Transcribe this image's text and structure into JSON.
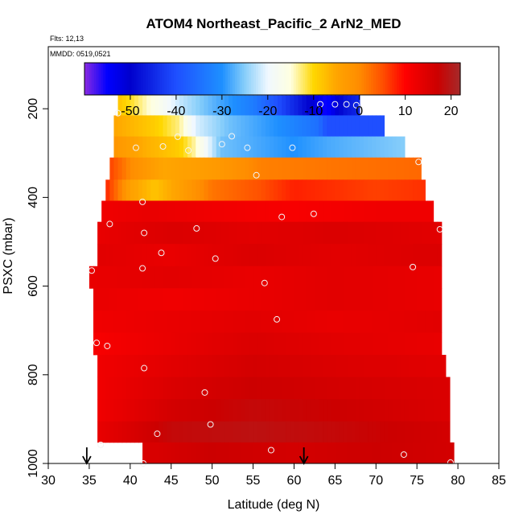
{
  "chart_data": {
    "type": "heatmap",
    "title": "ATOM4 Northeast_Pacific_2 ArN2_MED",
    "flights_text": "Flts: 12,13",
    "date_text": "MMDD: 0519,0521",
    "xlabel": "Latitude (deg N)",
    "ylabel": "PSXC (mbar)",
    "xlim": [
      30,
      85
    ],
    "ylim": [
      1000,
      60
    ],
    "y_reversed": true,
    "x_ticks": [
      "30",
      "35",
      "40",
      "45",
      "50",
      "55",
      "60",
      "65",
      "70",
      "75",
      "80",
      "85"
    ],
    "y_ticks": [
      "200",
      "400",
      "600",
      "800",
      "1000"
    ],
    "colorbar": {
      "range": [
        -60,
        22
      ],
      "ticks": [
        "-50",
        "-40",
        "-30",
        "-20",
        "-10",
        "0",
        "10",
        "20"
      ],
      "stops": [
        {
          "v": -60,
          "c": "#8a2be2"
        },
        {
          "v": -55,
          "c": "#0000ff"
        },
        {
          "v": -50,
          "c": "#0000cd"
        },
        {
          "v": -40,
          "c": "#1f4fff"
        },
        {
          "v": -30,
          "c": "#1e90ff"
        },
        {
          "v": -25,
          "c": "#87cefa"
        },
        {
          "v": -20,
          "c": "#f0f8ff"
        },
        {
          "v": -15,
          "c": "#ffffe0"
        },
        {
          "v": -10,
          "c": "#ffd700"
        },
        {
          "v": -5,
          "c": "#ffa500"
        },
        {
          "v": 0,
          "c": "#ff8c00"
        },
        {
          "v": 5,
          "c": "#ff5000"
        },
        {
          "v": 10,
          "c": "#ff0000"
        },
        {
          "v": 17,
          "c": "#cc0000"
        },
        {
          "v": 22,
          "c": "#a52a2a"
        }
      ]
    },
    "profiles": [
      {
        "p": 190,
        "lat_start": 38.5,
        "lat_end": 68,
        "values": [
          {
            "lat": 38.5,
            "v": -8
          },
          {
            "lat": 43,
            "v": -16
          },
          {
            "lat": 46,
            "v": -22
          },
          {
            "lat": 50,
            "v": -27
          },
          {
            "lat": 55,
            "v": -33
          },
          {
            "lat": 58,
            "v": -40
          },
          {
            "lat": 62,
            "v": -50
          },
          {
            "lat": 64,
            "v": -56
          },
          {
            "lat": 66,
            "v": -48
          },
          {
            "lat": 68,
            "v": -45
          }
        ]
      },
      {
        "p": 240,
        "lat_start": 38,
        "lat_end": 71,
        "values": [
          {
            "lat": 38,
            "v": -5
          },
          {
            "lat": 43,
            "v": -9
          },
          {
            "lat": 46,
            "v": -13
          },
          {
            "lat": 48,
            "v": -21
          },
          {
            "lat": 52,
            "v": -26
          },
          {
            "lat": 58,
            "v": -30
          },
          {
            "lat": 63,
            "v": -35
          },
          {
            "lat": 64,
            "v": -40
          },
          {
            "lat": 71,
            "v": -40
          }
        ]
      },
      {
        "p": 285,
        "lat_start": 38,
        "lat_end": 73.5,
        "values": [
          {
            "lat": 38,
            "v": -2
          },
          {
            "lat": 42,
            "v": -6
          },
          {
            "lat": 46,
            "v": -9
          },
          {
            "lat": 48,
            "v": -14
          },
          {
            "lat": 51,
            "v": -26
          },
          {
            "lat": 60,
            "v": -30
          },
          {
            "lat": 64,
            "v": -28
          },
          {
            "lat": 73.5,
            "v": -25
          }
        ]
      },
      {
        "p": 335,
        "lat_start": 37.5,
        "lat_end": 75.5,
        "values": [
          {
            "lat": 37.5,
            "v": 6
          },
          {
            "lat": 40,
            "v": 0
          },
          {
            "lat": 44,
            "v": -5
          },
          {
            "lat": 50,
            "v": -3
          },
          {
            "lat": 56,
            "v": 1
          },
          {
            "lat": 65,
            "v": 2
          },
          {
            "lat": 75.5,
            "v": 3
          }
        ]
      },
      {
        "p": 385,
        "lat_start": 37,
        "lat_end": 76,
        "values": [
          {
            "lat": 37,
            "v": 8
          },
          {
            "lat": 40,
            "v": -4
          },
          {
            "lat": 43,
            "v": -8
          },
          {
            "lat": 46,
            "v": -4
          },
          {
            "lat": 50,
            "v": 2
          },
          {
            "lat": 56,
            "v": 5
          },
          {
            "lat": 60,
            "v": 8
          },
          {
            "lat": 70,
            "v": 6
          },
          {
            "lat": 76,
            "v": 7
          }
        ]
      },
      {
        "p": 430,
        "lat_start": 36.5,
        "lat_end": 77,
        "values": [
          {
            "lat": 36.5,
            "v": 12
          },
          {
            "lat": 42,
            "v": 13
          },
          {
            "lat": 50,
            "v": 12
          },
          {
            "lat": 60,
            "v": 11
          },
          {
            "lat": 70,
            "v": 12
          },
          {
            "lat": 77,
            "v": 12
          }
        ]
      },
      {
        "p": 480,
        "lat_start": 36,
        "lat_end": 78,
        "values": [
          {
            "lat": 36,
            "v": 13
          },
          {
            "lat": 45,
            "v": 15
          },
          {
            "lat": 55,
            "v": 14
          },
          {
            "lat": 65,
            "v": 15
          },
          {
            "lat": 78,
            "v": 14
          }
        ]
      },
      {
        "p": 530,
        "lat_start": 36,
        "lat_end": 78,
        "values": [
          {
            "lat": 36,
            "v": 14
          },
          {
            "lat": 45,
            "v": 13
          },
          {
            "lat": 55,
            "v": 15
          },
          {
            "lat": 65,
            "v": 14
          },
          {
            "lat": 78,
            "v": 15
          }
        ]
      },
      {
        "p": 580,
        "lat_start": 35,
        "lat_end": 78,
        "values": [
          {
            "lat": 35,
            "v": 13
          },
          {
            "lat": 45,
            "v": 14
          },
          {
            "lat": 55,
            "v": 13
          },
          {
            "lat": 65,
            "v": 14
          },
          {
            "lat": 78,
            "v": 13
          }
        ]
      },
      {
        "p": 630,
        "lat_start": 35.5,
        "lat_end": 78,
        "values": [
          {
            "lat": 35.5,
            "v": 13
          },
          {
            "lat": 45,
            "v": 12
          },
          {
            "lat": 55,
            "v": 13
          },
          {
            "lat": 65,
            "v": 14
          },
          {
            "lat": 78,
            "v": 13
          }
        ]
      },
      {
        "p": 680,
        "lat_start": 35.5,
        "lat_end": 78,
        "values": [
          {
            "lat": 35.5,
            "v": 12
          },
          {
            "lat": 45,
            "v": 13
          },
          {
            "lat": 55,
            "v": 14
          },
          {
            "lat": 65,
            "v": 13
          },
          {
            "lat": 78,
            "v": 14
          }
        ]
      },
      {
        "p": 730,
        "lat_start": 35.5,
        "lat_end": 78,
        "values": [
          {
            "lat": 35.5,
            "v": 11
          },
          {
            "lat": 45,
            "v": 13
          },
          {
            "lat": 55,
            "v": 15
          },
          {
            "lat": 65,
            "v": 14
          },
          {
            "lat": 78,
            "v": 13
          }
        ]
      },
      {
        "p": 780,
        "lat_start": 36,
        "lat_end": 78.5,
        "values": [
          {
            "lat": 36,
            "v": 12
          },
          {
            "lat": 45,
            "v": 14
          },
          {
            "lat": 55,
            "v": 16
          },
          {
            "lat": 65,
            "v": 15
          },
          {
            "lat": 78.5,
            "v": 14
          }
        ]
      },
      {
        "p": 830,
        "lat_start": 36,
        "lat_end": 79,
        "values": [
          {
            "lat": 36,
            "v": 12
          },
          {
            "lat": 45,
            "v": 15
          },
          {
            "lat": 55,
            "v": 17
          },
          {
            "lat": 65,
            "v": 16
          },
          {
            "lat": 79,
            "v": 15
          }
        ]
      },
      {
        "p": 880,
        "lat_start": 36,
        "lat_end": 79,
        "values": [
          {
            "lat": 36,
            "v": 12
          },
          {
            "lat": 45,
            "v": 16
          },
          {
            "lat": 55,
            "v": 18
          },
          {
            "lat": 65,
            "v": 17
          },
          {
            "lat": 79,
            "v": 15
          }
        ]
      },
      {
        "p": 930,
        "lat_start": 36,
        "lat_end": 79,
        "values": [
          {
            "lat": 36,
            "v": 13
          },
          {
            "lat": 45,
            "v": 18
          },
          {
            "lat": 55,
            "v": 19
          },
          {
            "lat": 65,
            "v": 18
          },
          {
            "lat": 79,
            "v": 16
          }
        ]
      },
      {
        "p": 975,
        "lat_start": 41.5,
        "lat_end": 79.5,
        "values": [
          {
            "lat": 41.5,
            "v": 15
          },
          {
            "lat": 50,
            "v": 17
          },
          {
            "lat": 60,
            "v": 16
          },
          {
            "lat": 70,
            "v": 17
          },
          {
            "lat": 79.5,
            "v": 16
          }
        ]
      }
    ],
    "sample_points": [
      {
        "lat": 38.5,
        "p": 210
      },
      {
        "lat": 63.2,
        "p": 190
      },
      {
        "lat": 65.0,
        "p": 190
      },
      {
        "lat": 66.4,
        "p": 190
      },
      {
        "lat": 67.6,
        "p": 192
      },
      {
        "lat": 40.7,
        "p": 288
      },
      {
        "lat": 44.0,
        "p": 285
      },
      {
        "lat": 45.8,
        "p": 263
      },
      {
        "lat": 47.1,
        "p": 294
      },
      {
        "lat": 51.2,
        "p": 280
      },
      {
        "lat": 52.4,
        "p": 262
      },
      {
        "lat": 54.3,
        "p": 288
      },
      {
        "lat": 59.8,
        "p": 288
      },
      {
        "lat": 75.2,
        "p": 320
      },
      {
        "lat": 55.4,
        "p": 350
      },
      {
        "lat": 41.5,
        "p": 410
      },
      {
        "lat": 37.5,
        "p": 460
      },
      {
        "lat": 41.7,
        "p": 480
      },
      {
        "lat": 48.1,
        "p": 470
      },
      {
        "lat": 58.5,
        "p": 444
      },
      {
        "lat": 62.4,
        "p": 437
      },
      {
        "lat": 77.8,
        "p": 472
      },
      {
        "lat": 43.8,
        "p": 525
      },
      {
        "lat": 50.4,
        "p": 538
      },
      {
        "lat": 35.3,
        "p": 565
      },
      {
        "lat": 41.5,
        "p": 560
      },
      {
        "lat": 74.5,
        "p": 557
      },
      {
        "lat": 56.4,
        "p": 593
      },
      {
        "lat": 57.9,
        "p": 675
      },
      {
        "lat": 35.9,
        "p": 728
      },
      {
        "lat": 37.2,
        "p": 735
      },
      {
        "lat": 41.7,
        "p": 785
      },
      {
        "lat": 49.1,
        "p": 840
      },
      {
        "lat": 49.8,
        "p": 912
      },
      {
        "lat": 43.3,
        "p": 933
      },
      {
        "lat": 36.4,
        "p": 958
      },
      {
        "lat": 57.2,
        "p": 970
      },
      {
        "lat": 73.4,
        "p": 980
      },
      {
        "lat": 41.6,
        "p": 1000
      },
      {
        "lat": 79.1,
        "p": 998
      }
    ],
    "arrows": [
      {
        "lat": 34.7
      },
      {
        "lat": 61.2
      }
    ]
  }
}
